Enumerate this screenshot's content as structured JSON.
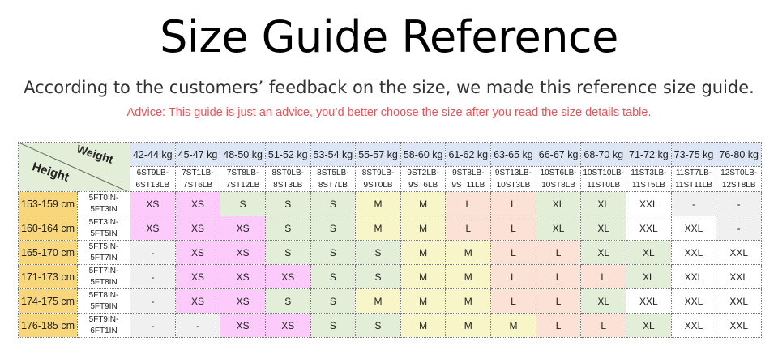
{
  "title": "Size Guide Reference",
  "subtitle": "According to the customers’ feedback on the size, we made this reference size guide.",
  "advice": "Advice: This guide is just an advice, you’d better choose the size after you read the size details table.",
  "table": {
    "corner_weight": "Weight",
    "corner_height": "Height",
    "weights_kg": [
      "42-44 kg",
      "45-47 kg",
      "48-50 kg",
      "51-52 kg",
      "53-54 kg",
      "55-57 kg",
      "58-60 kg",
      "61-62 kg",
      "63-65 kg",
      "66-67 kg",
      "68-70 kg",
      "71-72 kg",
      "73-75 kg",
      "76-80 kg"
    ],
    "weights_st": [
      [
        "6ST9LB-",
        "6ST13LB"
      ],
      [
        "7ST1LB-",
        "7ST6LB"
      ],
      [
        "7ST8LB-",
        "7ST12LB"
      ],
      [
        "8ST0LB-",
        "8ST3LB"
      ],
      [
        "8ST5LB-",
        "8ST7LB"
      ],
      [
        "8ST9LB-",
        "9ST0LB"
      ],
      [
        "9ST2LB-",
        "9ST6LB"
      ],
      [
        "9ST8LB-",
        "9ST11LB"
      ],
      [
        "9ST13LB-",
        "10ST3LB"
      ],
      [
        "10ST6LB-",
        "10ST8LB"
      ],
      [
        "10ST10LB-",
        "11ST0LB"
      ],
      [
        "11ST3LB-",
        "11ST5LB"
      ],
      [
        "11ST7LB-",
        "11ST11LB"
      ],
      [
        "12ST0LB-",
        "12ST8LB"
      ]
    ],
    "rows": [
      {
        "cm": "153-159 cm",
        "ft": [
          "5FT0IN-",
          "5FT3IN"
        ],
        "sizes": [
          "XS",
          "XS",
          "S",
          "S",
          "S",
          "M",
          "M",
          "L",
          "L",
          "XL",
          "XL",
          "XXL",
          "-",
          "-"
        ]
      },
      {
        "cm": "160-164 cm",
        "ft": [
          "5FT3IN-",
          "5FT5IN"
        ],
        "sizes": [
          "XS",
          "XS",
          "XS",
          "S",
          "S",
          "M",
          "M",
          "L",
          "L",
          "XL",
          "XL",
          "XXL",
          "XXL",
          "-"
        ]
      },
      {
        "cm": "165-170 cm",
        "ft": [
          "5FT5IN-",
          "5FT7IN"
        ],
        "sizes": [
          "-",
          "XS",
          "XS",
          "S",
          "S",
          "S",
          "M",
          "M",
          "L",
          "L",
          "XL",
          "XL",
          "XXL",
          "XXL"
        ]
      },
      {
        "cm": "171-173 cm",
        "ft": [
          "5FT7IN-",
          "5FT8IN"
        ],
        "sizes": [
          "-",
          "XS",
          "XS",
          "XS",
          "S",
          "S",
          "M",
          "M",
          "L",
          "L",
          "L",
          "XL",
          "XXL",
          "XXL"
        ]
      },
      {
        "cm": "174-175 cm",
        "ft": [
          "5FT8IN-",
          "5FT9IN"
        ],
        "sizes": [
          "-",
          "XS",
          "XS",
          "S",
          "S",
          "M",
          "M",
          "M",
          "L",
          "L",
          "XL",
          "XXL",
          "XXL",
          "XXL"
        ]
      },
      {
        "cm": "176-185 cm",
        "ft": [
          "5FT9IN-",
          "6FT1IN"
        ],
        "sizes": [
          "-",
          "-",
          "XS",
          "XS",
          "S",
          "S",
          "M",
          "M",
          "M",
          "L",
          "L",
          "XL",
          "XXL",
          "XXL"
        ]
      }
    ]
  },
  "colors": {
    "XS": "#fccbfb",
    "S": "#e3eed9",
    "M": "#f8f6c8",
    "L": "#fbe1d6",
    "XL": "#e3eed9",
    "XXL": "#ffffff",
    "-": "#f0f0f0"
  }
}
